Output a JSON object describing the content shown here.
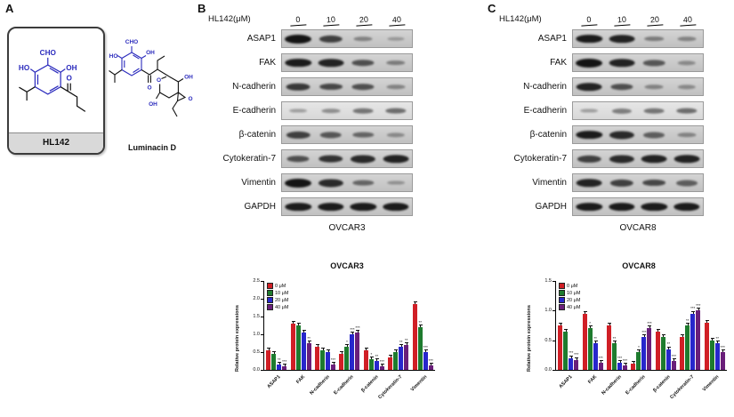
{
  "figure": {
    "panel_a": {
      "label": "A",
      "compound1": {
        "name": "HL142",
        "labels": [
          "CHO",
          "HO",
          "OH",
          "O"
        ]
      },
      "compound2": {
        "name": "Luminacin D",
        "labels": [
          "CHO",
          "HO",
          "OH",
          "O",
          "O",
          "OH",
          "O",
          "OH"
        ]
      }
    },
    "panel_b": {
      "label": "B",
      "treatment_label": "HL142(μM)",
      "doses": [
        "0",
        "10",
        "20",
        "40"
      ],
      "cell_line": "OVCAR3",
      "blots": [
        {
          "protein": "ASAP1",
          "bands": [
            1.0,
            0.7,
            0.25,
            0.1
          ]
        },
        {
          "protein": "FAK",
          "bands": [
            0.95,
            0.9,
            0.6,
            0.3
          ]
        },
        {
          "protein": "N-cadherin",
          "bands": [
            0.75,
            0.65,
            0.6,
            0.25
          ]
        },
        {
          "protein": "E-cadherin",
          "bands": [
            0.15,
            0.25,
            0.4,
            0.45
          ],
          "light": true
        },
        {
          "protein": "β-catenin",
          "bands": [
            0.7,
            0.55,
            0.45,
            0.2
          ]
        },
        {
          "protein": "Cytokeratin-7",
          "bands": [
            0.6,
            0.8,
            0.85,
            0.9
          ]
        },
        {
          "protein": "Vimentin",
          "bands": [
            1.0,
            0.85,
            0.45,
            0.15
          ]
        },
        {
          "protein": "GAPDH",
          "bands": [
            0.95,
            0.95,
            0.95,
            0.95
          ]
        }
      ]
    },
    "panel_c": {
      "label": "C",
      "treatment_label": "HL142(μM)",
      "doses": [
        "0",
        "10",
        "20",
        "40"
      ],
      "cell_line": "OVCAR8",
      "blots": [
        {
          "protein": "ASAP1",
          "bands": [
            0.95,
            0.9,
            0.3,
            0.25
          ]
        },
        {
          "protein": "FAK",
          "bands": [
            1.0,
            0.9,
            0.55,
            0.2
          ]
        },
        {
          "protein": "N-cadherin",
          "bands": [
            0.9,
            0.6,
            0.25,
            0.2
          ]
        },
        {
          "protein": "E-cadherin",
          "bands": [
            0.15,
            0.35,
            0.4,
            0.45
          ],
          "light": true
        },
        {
          "protein": "β-catenin",
          "bands": [
            0.95,
            0.85,
            0.5,
            0.25
          ]
        },
        {
          "protein": "Cytokeratin-7",
          "bands": [
            0.7,
            0.85,
            0.9,
            0.9
          ]
        },
        {
          "protein": "Vimentin",
          "bands": [
            0.9,
            0.7,
            0.65,
            0.5
          ]
        },
        {
          "protein": "GAPDH",
          "bands": [
            0.95,
            0.95,
            0.95,
            0.95
          ]
        }
      ]
    }
  },
  "chart_data": [
    {
      "type": "bar",
      "title": "OVCAR3",
      "xlabel": "",
      "ylabel": "Relative protein expressions",
      "ylim": [
        0,
        2.5
      ],
      "yticks": [
        0.0,
        0.5,
        1.0,
        1.5,
        2.0,
        2.5
      ],
      "grid": false,
      "legend_position": "top-left",
      "categories": [
        "ASAP1",
        "FAK",
        "N-cadherin",
        "E-cadherin",
        "β-catenin",
        "Cytokeratin-7",
        "Vimentin"
      ],
      "series": [
        {
          "name": "0 μM",
          "color": "#d01f26",
          "values": [
            0.55,
            1.3,
            0.65,
            0.45,
            0.55,
            0.35,
            1.85
          ]
        },
        {
          "name": "10 μM",
          "color": "#1e7b2e",
          "values": [
            0.45,
            1.25,
            0.55,
            0.65,
            0.3,
            0.5,
            1.2
          ],
          "sig": [
            "",
            "",
            "",
            "*",
            "*",
            "",
            "**"
          ]
        },
        {
          "name": "20 μM",
          "color": "#2727cc",
          "values": [
            0.15,
            1.05,
            0.5,
            1.0,
            0.25,
            0.65,
            0.5
          ],
          "sig": [
            "**",
            "",
            "",
            "***",
            "**",
            "**",
            "***"
          ]
        },
        {
          "name": "40 μM",
          "color": "#6a1f7a",
          "values": [
            0.1,
            0.75,
            0.15,
            1.05,
            0.1,
            0.7,
            0.12
          ],
          "sig": [
            "***",
            "**",
            "***",
            "***",
            "***",
            "**",
            "***"
          ]
        }
      ]
    },
    {
      "type": "bar",
      "title": "OVCAR8",
      "xlabel": "",
      "ylabel": "Relative protein expressions",
      "ylim": [
        0,
        1.5
      ],
      "yticks": [
        0.0,
        0.5,
        1.0,
        1.5
      ],
      "grid": false,
      "legend_position": "top-left",
      "categories": [
        "ASAP1",
        "FAK",
        "N-cadherin",
        "E-cadherin",
        "β-catenin",
        "Cytokeratin-7",
        "Vimentin"
      ],
      "series": [
        {
          "name": "0 μM",
          "color": "#d01f26",
          "values": [
            0.75,
            0.95,
            0.75,
            0.1,
            0.65,
            0.55,
            0.8
          ]
        },
        {
          "name": "10 μM",
          "color": "#1e7b2e",
          "values": [
            0.65,
            0.7,
            0.45,
            0.3,
            0.55,
            0.75,
            0.5
          ],
          "sig": [
            "",
            "*",
            "**",
            "*",
            "",
            "**",
            ""
          ]
        },
        {
          "name": "20 μM",
          "color": "#2727cc",
          "values": [
            0.2,
            0.45,
            0.12,
            0.55,
            0.35,
            0.95,
            0.45
          ],
          "sig": [
            "***",
            "**",
            "***",
            "***",
            "**",
            "***",
            "**"
          ]
        },
        {
          "name": "40 μM",
          "color": "#6a1f7a",
          "values": [
            0.17,
            0.12,
            0.07,
            0.7,
            0.15,
            1.0,
            0.3
          ],
          "sig": [
            "***",
            "***",
            "***",
            "***",
            "***",
            "***",
            "***"
          ]
        }
      ]
    }
  ]
}
